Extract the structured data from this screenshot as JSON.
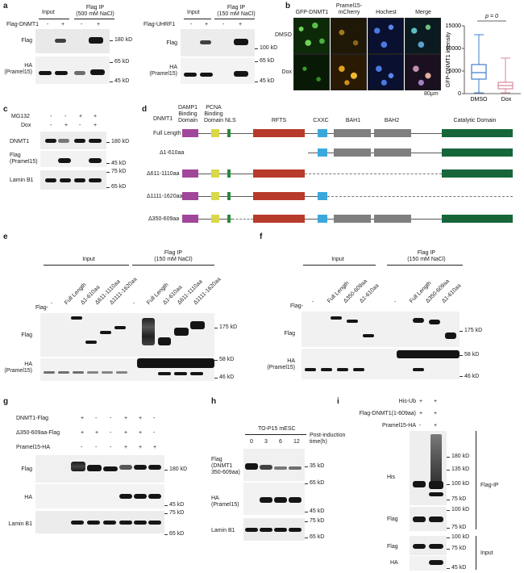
{
  "panel_a": {
    "letter": "a",
    "left": {
      "treat_label": "Flag-DNMT1",
      "input_label": "Input",
      "ip_label_1": "Flag IP",
      "ip_label_2": "(500 mM NaCl)",
      "signs": [
        "-",
        "+",
        "-",
        "+"
      ],
      "row1_label": "Flag",
      "row2_label_1": "HA",
      "row2_label_2": "(Pramel15)",
      "mw": [
        "180 kD",
        "65 kD",
        "45 kD"
      ]
    },
    "right": {
      "treat_label": "Flag-UHRF1",
      "input_label": "Input",
      "ip_label_1": "Flag IP",
      "ip_label_2": "(150 mM NaCl)",
      "signs": [
        "-",
        "+",
        "-",
        "+"
      ],
      "row1_label": "Flag",
      "row2_label_1": "HA",
      "row2_label_2": "(Pramel15)",
      "mw": [
        "100 kD",
        "65 kD",
        "45 kD"
      ]
    }
  },
  "panel_b": {
    "letter": "b",
    "col_headers": [
      "GFP-DNMT1",
      "Pramel15-",
      "mCherry",
      "Hochest",
      "Merge"
    ],
    "row_labels": [
      "DMSO",
      "Dox"
    ],
    "scale": "80μm",
    "box_ylabel": "GFP-DNMT1 intensity",
    "pvalue": "p = 0",
    "box_xticks": [
      "DMSO",
      "Dox"
    ],
    "box_yticks": [
      "0",
      "5000",
      "10000",
      "15000"
    ],
    "box_colors": {
      "dmso": "#3f7fd0",
      "dox": "#d88a9a"
    }
  },
  "panel_c": {
    "letter": "c",
    "row1_name": "MG132",
    "row1_signs": [
      "-",
      "-",
      "+",
      "+"
    ],
    "row2_name": "Dox",
    "row2_signs": [
      "-",
      "+",
      "-",
      "+"
    ],
    "blots": [
      "DNMT1",
      "Flag",
      "(Pramel15)",
      "Lamin B1"
    ],
    "mw": [
      "180 kD",
      "45 kD",
      "75 kD",
      "65 kD"
    ]
  },
  "panel_d": {
    "letter": "d",
    "header_left": "DNMT1",
    "domain_headers": {
      "damp1": [
        "DAMP1",
        "Binding",
        "Domain"
      ],
      "pcna": [
        "PCNA",
        "Binding",
        "Domain"
      ],
      "nls": "NLS",
      "rfts": "RFTS",
      "cxxc": "CXXC",
      "bah1": "BAH1",
      "bah2": "BAH2",
      "catalytic": "Catalytic Domain"
    },
    "constructs": [
      "Full Length",
      "Δ1-610aa",
      "Δ611-1110aa",
      "Δ1111-1620aa",
      "Δ350-609aa"
    ],
    "colors": {
      "damp1": "#a0479a",
      "pcna": "#d9d84a",
      "nls": "#2a8a3a",
      "rfts": "#b83a2a",
      "cxxc": "#3aa8dc",
      "bah": "#7f7f7f",
      "catalytic": "#16663a",
      "line": "#5a5a5a"
    }
  },
  "panel_e": {
    "letter": "e",
    "input_label": "Input",
    "ip_label_1": "Flag IP",
    "ip_label_2": "(150 mM NaCl)",
    "flag_prefix": "Flag-",
    "lanes": [
      "-",
      "Full Length",
      "Δ1-610aa",
      "Δ611-1110aa",
      "Δ1111-1620aa",
      "-",
      "Full Length",
      "Δ1-610aa",
      "Δ611-1110aa",
      "Δ1111-1620aa"
    ],
    "row1_label": "Flag",
    "row2_label_1": "HA",
    "row2_label_2": "(Pramel15)",
    "mw": [
      "175 kD",
      "58 kD",
      "46 kD"
    ]
  },
  "panel_f": {
    "letter": "f",
    "input_label": "Input",
    "ip_label_1": "Flag IP",
    "ip_label_2": "(150 mM NaCl)",
    "flag_prefix": "Flag-",
    "lanes": [
      "-",
      "Full Length",
      "Δ350-609aa",
      "Δ1-610aa",
      "-",
      "Full Length",
      "Δ350-609aa",
      "Δ1-610aa"
    ],
    "row1_label": "Flag",
    "row2_label_1": "HA",
    "row2_label_2": "(Pramel15)",
    "mw": [
      "175 kD",
      "58 kD",
      "46 kD"
    ]
  },
  "panel_g": {
    "letter": "g",
    "rows": [
      {
        "name": "DNMT1-Flag",
        "signs": [
          "+",
          "-",
          "-",
          "+",
          "+",
          "-"
        ]
      },
      {
        "name": "Δ350-609aa-Flag",
        "signs": [
          "+",
          "+",
          "-",
          "+",
          "+",
          "-"
        ]
      },
      {
        "name": "Pramel15-HA",
        "signs": [
          "-",
          "-",
          "-",
          "+",
          "+",
          "+"
        ]
      }
    ],
    "blots": [
      "Flag",
      "HA",
      "Lamin B1"
    ],
    "mw": [
      "180 kD",
      "45 kD",
      "75 kD",
      "65 kD"
    ]
  },
  "panel_h": {
    "letter": "h",
    "cell_label": "TO-P15 mESC",
    "time_label_1": "Post-induction",
    "time_label_2": "time(h)",
    "times": [
      "0",
      "3",
      "6",
      "12"
    ],
    "blot1": [
      "Flag",
      "(DNMT1",
      "350-609aa)"
    ],
    "blot2": [
      "HA",
      "(Pramel15)"
    ],
    "blot3": "Lamin B1",
    "mw": [
      "35 kD",
      "65 kD",
      "45 kD",
      "75 kD",
      "65 kD"
    ]
  },
  "panel_i": {
    "letter": "i",
    "rows": [
      {
        "name": "His-Ub",
        "signs": [
          "+",
          "+"
        ]
      },
      {
        "name": "Flag-DNMT1(1-609aa)",
        "signs": [
          "+",
          "+"
        ]
      },
      {
        "name": "Pramel15-HA",
        "signs": [
          "-",
          "+"
        ]
      }
    ],
    "blots": [
      "His",
      "Flag",
      "Flag",
      "HA"
    ],
    "group_labels": [
      "Flag-IP",
      "Input"
    ],
    "mw": [
      "180 kD",
      "135 kD",
      "100 kD",
      "75 kD",
      "100 kD",
      "75 kD",
      "100 kD",
      "75 kD",
      "45 kD"
    ]
  }
}
